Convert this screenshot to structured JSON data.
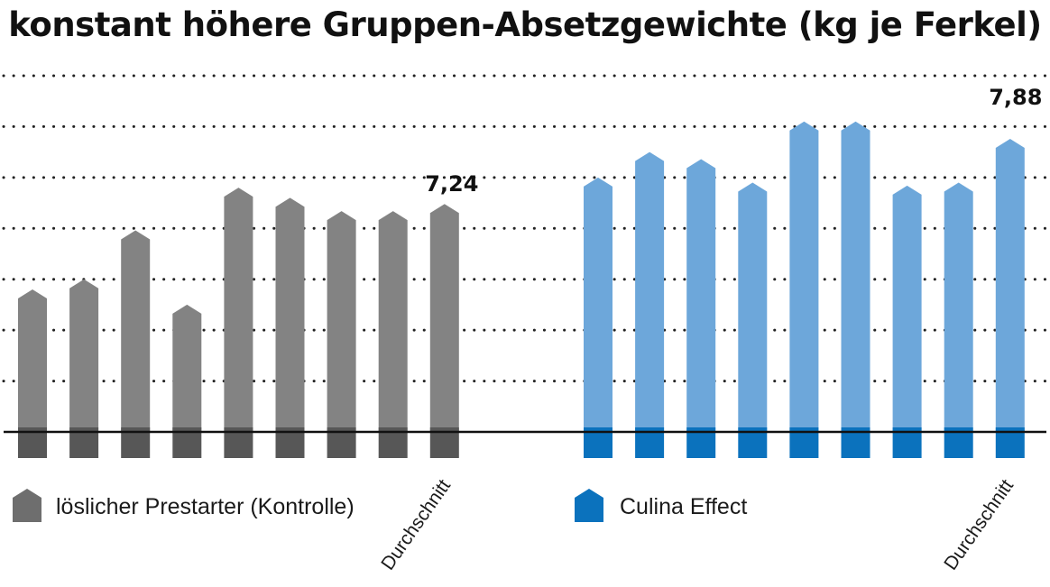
{
  "title": "konstant höhere Gruppen-Absetzgewichte (kg je Ferkel)",
  "colors": {
    "control_bar": "#838383",
    "control_base": "#575757",
    "control_legend": "#6e6e6e",
    "culina_bar": "#6da7da",
    "culina_base": "#0b72bd",
    "culina_legend": "#0b72bd",
    "grid": "#222222",
    "baseline": "#111111"
  },
  "chart_data": {
    "type": "bar",
    "title": "konstant höhere Gruppen-Absetzgewichte (kg je Ferkel)",
    "grid": true,
    "legend_placement": "bottom",
    "ylim": [
      0,
      9
    ],
    "series": [
      {
        "name": "löslicher Prestarter (Kontrolle)",
        "key": "control",
        "values": [
          6.4,
          6.5,
          6.98,
          6.25,
          7.4,
          7.3,
          7.17,
          7.17,
          7.24
        ],
        "label_value": "7,24",
        "average_label": "Durchschnitt"
      },
      {
        "name": "Culina Effect",
        "key": "culina",
        "values": [
          7.5,
          7.75,
          7.68,
          7.45,
          8.05,
          8.05,
          7.42,
          7.45,
          7.88
        ],
        "label_value": "7,88",
        "average_label": "Durchschnitt"
      }
    ]
  }
}
